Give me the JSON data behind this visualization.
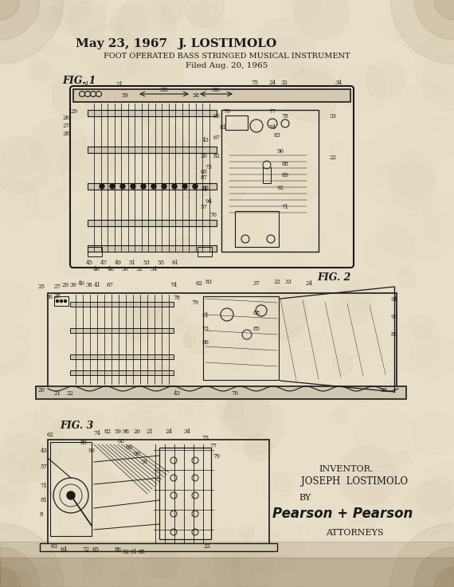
{
  "bg_color": "#e8dfc8",
  "paper_texture": true,
  "title_date": "May 23, 1967",
  "title_name": "J. LOSTIMOLO",
  "title_patent": "FOOT OPERATED BASS STRINGED MUSICAL INSTRUMENT",
  "title_filed": "Filed Aug. 20, 1965",
  "fig1_label": "FIG. 1",
  "fig2_label": "FIG. 2",
  "fig3_label": "FIG. 3",
  "inventor_label": "INVENTOR.",
  "inventor_name": "JOSEPH  LOSTIMOLO",
  "by_label": "BY",
  "attorney_sig": "Pearson + Pearson",
  "attorney_label": "ATTORNEYS",
  "ink_color": "#1a1a1a",
  "fig_width": 570,
  "fig_height": 737
}
